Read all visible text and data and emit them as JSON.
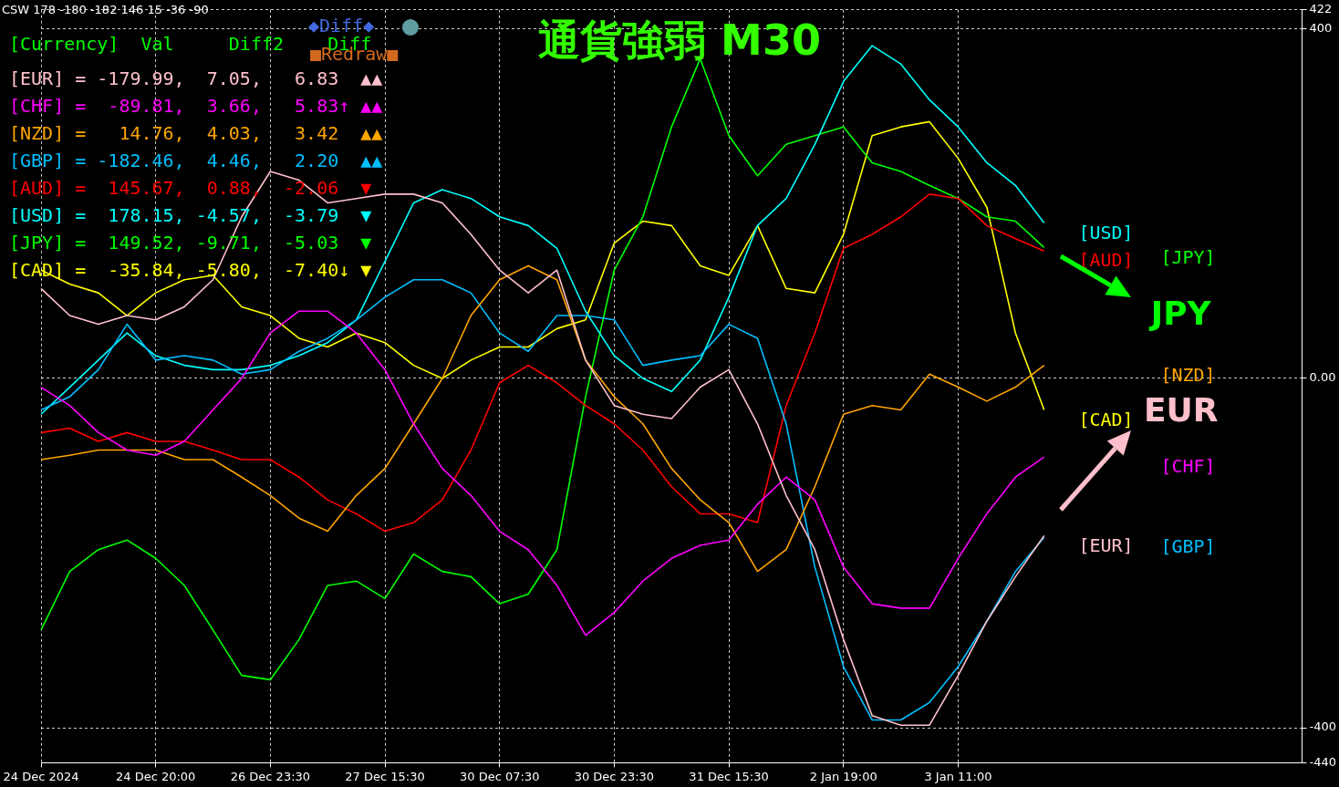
{
  "chart_data": {
    "type": "line",
    "title": "通貨強弱 M30",
    "categories": [
      "24 Dec 2024",
      null,
      null,
      null,
      "24 Dec 20:00",
      null,
      null,
      null,
      "26 Dec 23:30",
      null,
      null,
      null,
      "27 Dec 15:30",
      null,
      null,
      null,
      "30 Dec 07:30",
      null,
      null,
      null,
      "30 Dec 23:30",
      null,
      null,
      null,
      "31 Dec 15:30",
      null,
      null,
      null,
      "2 Jan 19:00",
      null,
      null,
      null,
      "3 Jan 11:00",
      null,
      null,
      null,
      null,
      null,
      null,
      null,
      null,
      null,
      null,
      null,
      null
    ],
    "series": [
      {
        "name": "[EUR]",
        "color": "#ffc0cb",
        "values": [
          103,
          72,
          62,
          72,
          67,
          82,
          113,
          185,
          237,
          227,
          201,
          206,
          211,
          211,
          201,
          165,
          124,
          98,
          124,
          21,
          -31,
          -41,
          -46,
          -10,
          10,
          -52,
          -134,
          -196,
          -299,
          -386,
          -397,
          -397,
          -340,
          -278,
          -227,
          -180,
          null,
          null,
          null,
          null,
          null,
          null,
          null,
          null,
          null
        ]
      },
      {
        "name": "[CHF]",
        "color": "#ff00ff",
        "values": [
          -10,
          -31,
          -62,
          -82,
          -88,
          -72,
          -36,
          0,
          52,
          77,
          77,
          52,
          10,
          -52,
          -103,
          -134,
          -175,
          -196,
          -237,
          -294,
          -268,
          -232,
          -206,
          -191,
          -185,
          -144,
          -113,
          -139,
          -216,
          -258,
          -263,
          -263,
          -206,
          -155,
          -113,
          -90,
          null,
          null,
          null,
          null,
          null,
          null,
          null,
          null,
          null
        ]
      },
      {
        "name": "[NZD]",
        "color": "#ffa500",
        "values": [
          -93,
          -88,
          -82,
          -82,
          -82,
          -93,
          -93,
          -113,
          -134,
          -160,
          -175,
          -134,
          -103,
          -52,
          0,
          72,
          113,
          129,
          113,
          21,
          -21,
          -52,
          -103,
          -139,
          -165,
          -221,
          -196,
          -124,
          -41,
          -31,
          -36,
          5,
          -10,
          -26,
          -10,
          15,
          null,
          null,
          null,
          null,
          null,
          null,
          null,
          null,
          null
        ]
      },
      {
        "name": "[GBP]",
        "color": "#00bfff",
        "values": [
          -36,
          -21,
          10,
          62,
          21,
          26,
          21,
          5,
          10,
          31,
          46,
          67,
          93,
          113,
          113,
          98,
          52,
          31,
          72,
          72,
          67,
          15,
          21,
          26,
          62,
          46,
          -52,
          -216,
          -330,
          -391,
          -391,
          -371,
          -330,
          -278,
          -221,
          -182,
          null,
          null,
          null,
          null,
          null,
          null,
          null,
          null,
          null
        ]
      },
      {
        "name": "[AUD]",
        "color": "#ff0000",
        "values": [
          -62,
          -57,
          -72,
          -62,
          -72,
          -72,
          -82,
          -93,
          -93,
          -113,
          -139,
          -155,
          -175,
          -165,
          -139,
          -82,
          -5,
          15,
          -5,
          -31,
          -52,
          -82,
          -124,
          -155,
          -155,
          -165,
          -31,
          52,
          149,
          165,
          185,
          211,
          206,
          175,
          160,
          146,
          null,
          null,
          null,
          null,
          null,
          null,
          null,
          null,
          null
        ]
      },
      {
        "name": "[USD]",
        "color": "#00ffff",
        "values": [
          -41,
          -10,
          21,
          52,
          26,
          15,
          10,
          10,
          15,
          26,
          41,
          67,
          134,
          201,
          216,
          206,
          185,
          175,
          149,
          77,
          26,
          0,
          -15,
          21,
          93,
          175,
          206,
          268,
          340,
          381,
          360,
          319,
          288,
          247,
          221,
          178,
          null,
          null,
          null,
          null,
          null,
          null,
          null,
          null,
          null
        ]
      },
      {
        "name": "[JPY]",
        "color": "#00ff00",
        "values": [
          -288,
          -221,
          -196,
          -185,
          -206,
          -237,
          -288,
          -340,
          -345,
          -299,
          -237,
          -232,
          -252,
          -201,
          -221,
          -227,
          -258,
          -247,
          -196,
          -21,
          124,
          185,
          288,
          366,
          278,
          232,
          268,
          278,
          288,
          247,
          237,
          221,
          206,
          185,
          180,
          150,
          null,
          null,
          null,
          null,
          null,
          null,
          null,
          null,
          null
        ]
      },
      {
        "name": "[CAD]",
        "color": "#ffff00",
        "values": [
          124,
          108,
          98,
          72,
          98,
          113,
          118,
          82,
          72,
          46,
          36,
          52,
          41,
          15,
          0,
          21,
          36,
          36,
          57,
          67,
          155,
          180,
          175,
          129,
          118,
          175,
          103,
          98,
          165,
          278,
          288,
          294,
          252,
          196,
          52,
          -36,
          null,
          null,
          null,
          null,
          null,
          null,
          null,
          null,
          null
        ]
      }
    ],
    "ylim": [
      -440,
      422
    ],
    "yticks": [
      422,
      400,
      {
        "value": 0,
        "label": "0.00"
      },
      -400,
      -440
    ],
    "grid": true,
    "legend": false,
    "annotations": [
      "CSW 178 -180 -182 146 15 -36 -90",
      "[Currency]  Val     Diff2    Diff",
      "[EUR] = -179.99,  7.05,   6.83  ▲▲",
      "[CHF] =  -89.81,  3.66,   5.83↑ ▲▲",
      "[NZD] =   14.76,  4.03,   3.42  ▲▲",
      "[GBP] = -182.46,  4.46,   2.20  ▲▲",
      "[AUD] =  145.67,  0.88,  -2.06  ▼",
      "[USD] =  178.15, -4.57,  -3.79  ▼",
      "[JPY] =  149.52, -9.71,  -5.03  ▼",
      "[CAD] =  -35.84, -5.80,  -7.40↓ ▼",
      "◆Diff◆",
      "■Redraw■",
      "JPY",
      "EUR"
    ]
  }
}
